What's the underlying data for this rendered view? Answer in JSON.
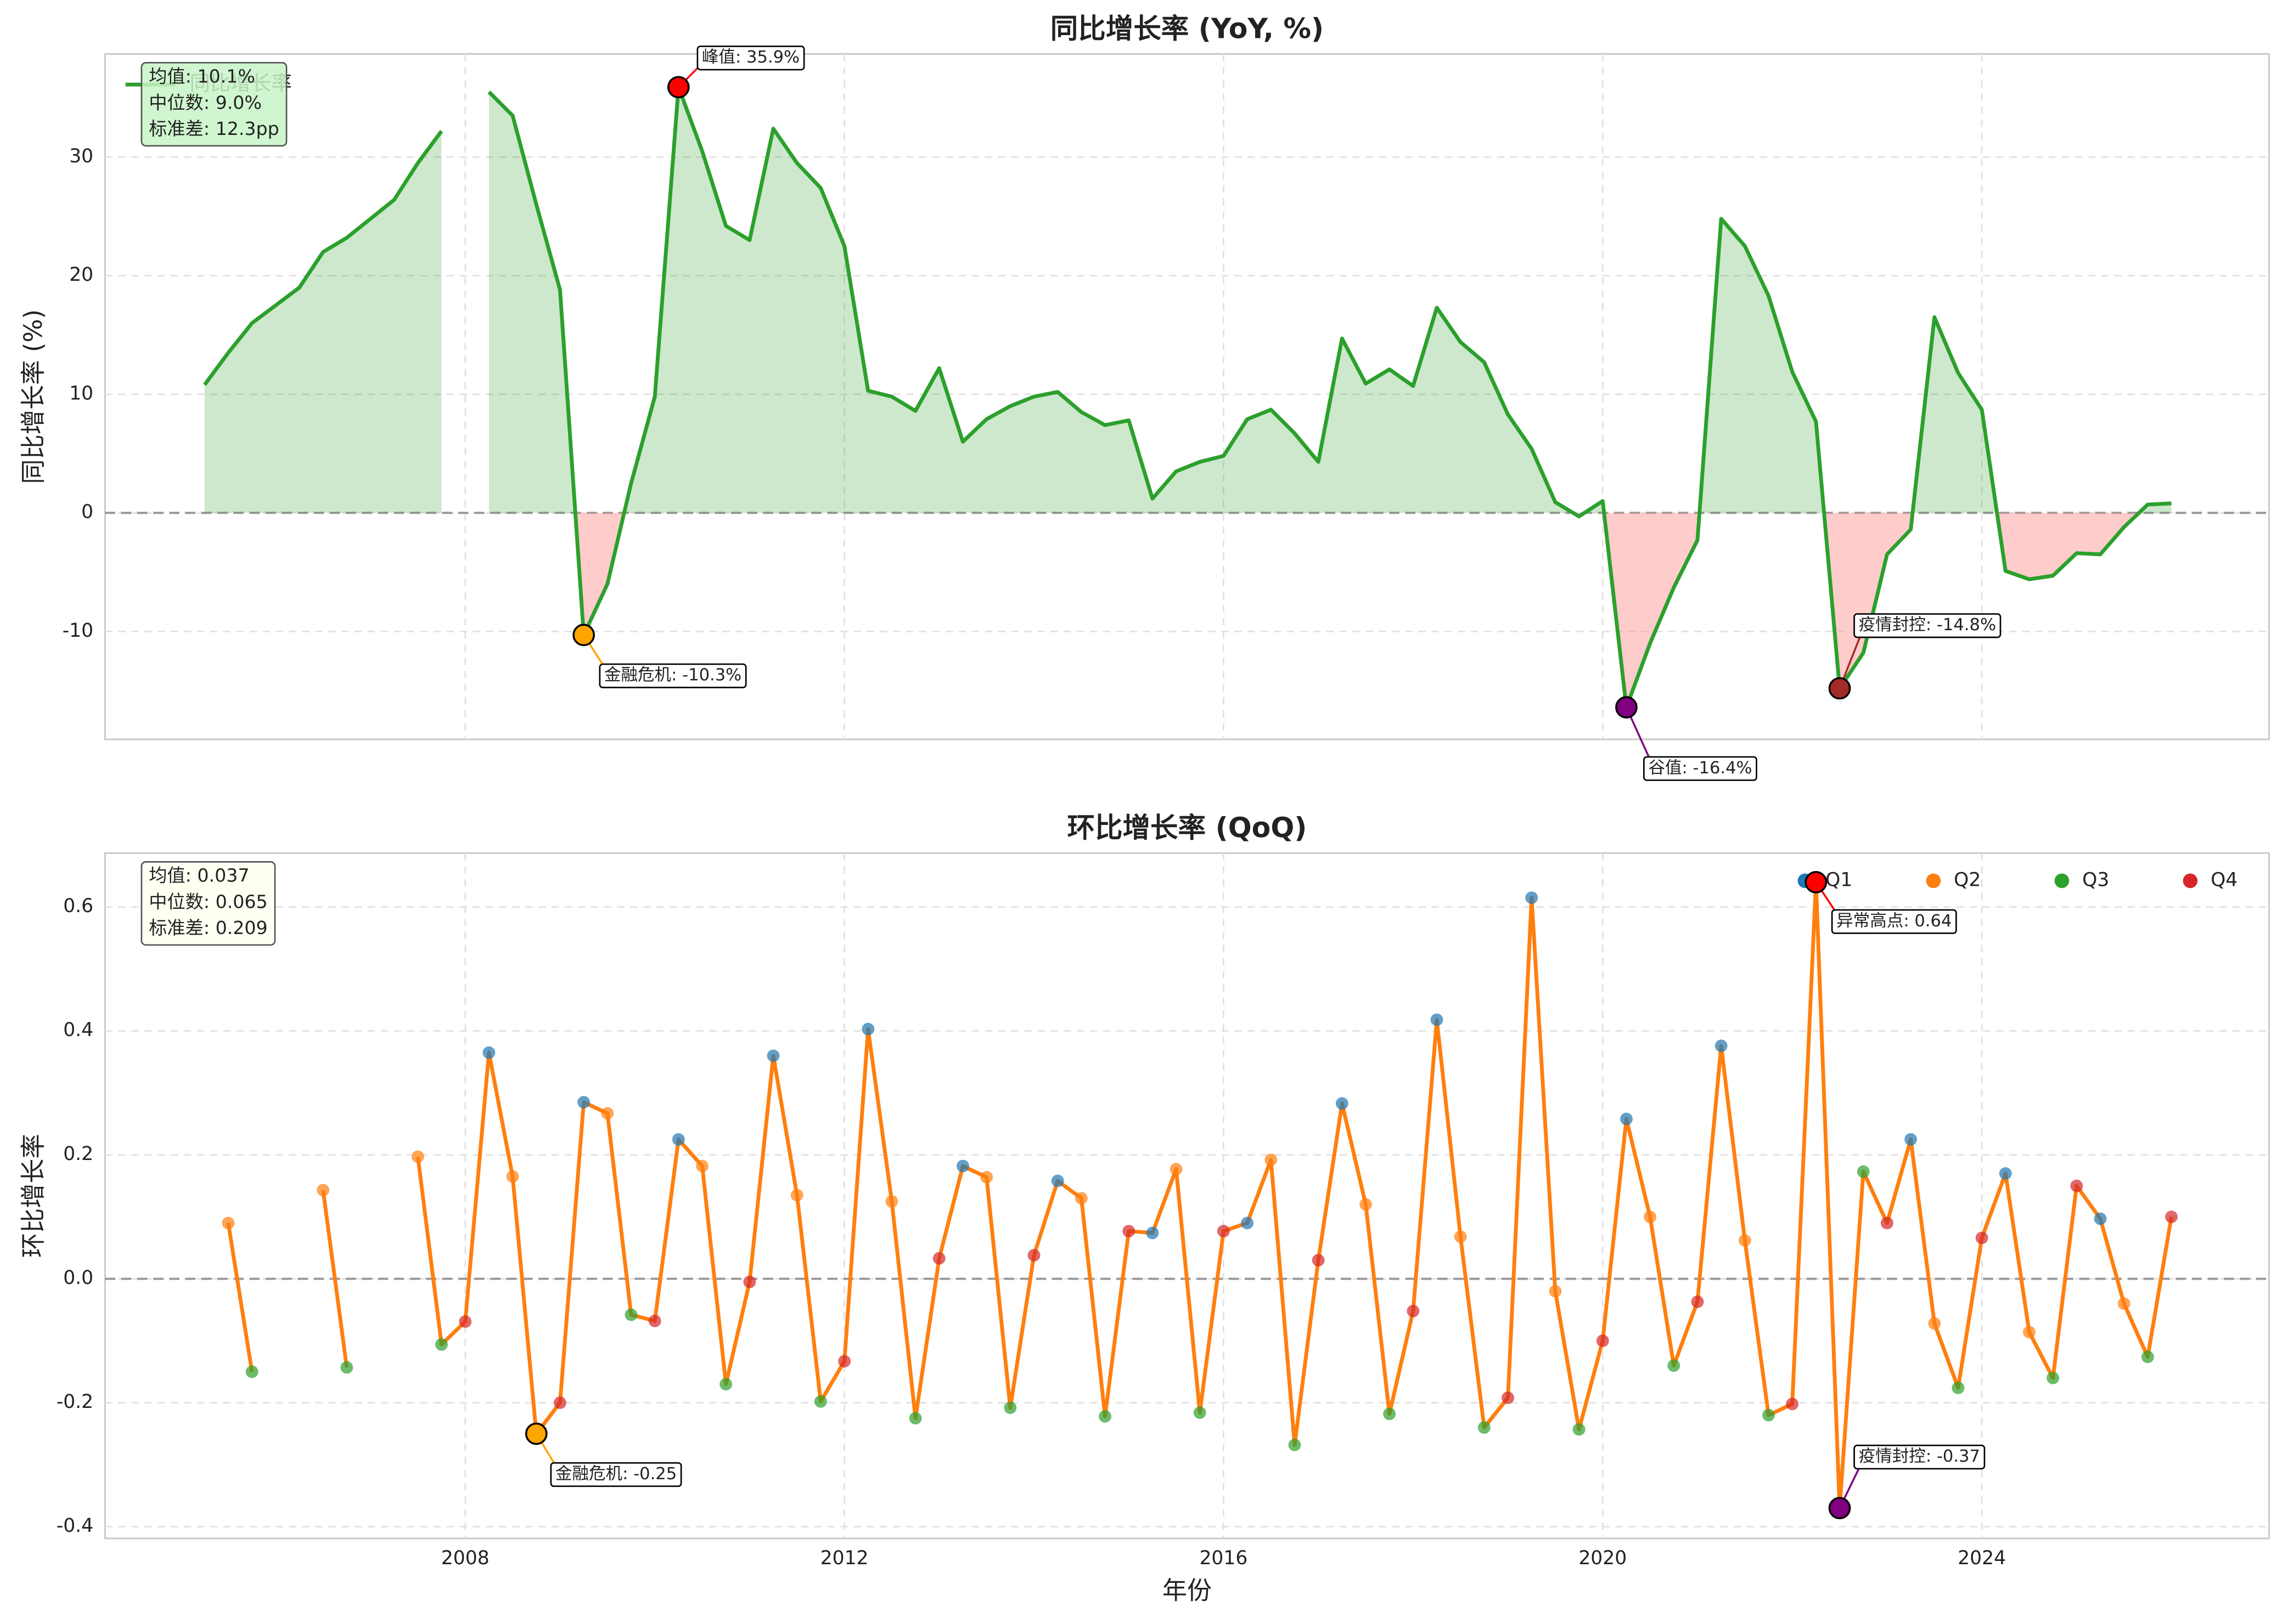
{
  "chart_data": [
    {
      "type": "area",
      "title": "同比增长率 (YoY, %)",
      "y_label": "同比增长率 (%)",
      "show_xtick_labels": false,
      "legend_loc": "upper left",
      "grid": true,
      "xlim": [
        2004.2,
        2027.03
      ],
      "xticks": [
        2008,
        2012,
        2016,
        2020,
        2024
      ],
      "ylim": [
        -19.1,
        38.7
      ],
      "yticks": [
        -10,
        0,
        10,
        20,
        30
      ],
      "positive_color": "#2ca02c",
      "negative_color": "#ff9999",
      "stats": [
        "均值: 10.1%",
        "中位数: 9.0%",
        "标准差: 12.3pp"
      ],
      "stats_color": "#c8f5c8",
      "x": [
        2005.25,
        2005.5,
        2005.75,
        2006,
        2006.25,
        2006.5,
        2006.75,
        2007,
        2007.25,
        2007.5,
        2007.75,
        2008,
        2008.25,
        2008.5,
        2008.75,
        2009,
        2009.25,
        2009.5,
        2009.75,
        2010,
        2010.25,
        2010.5,
        2010.75,
        2011,
        2011.25,
        2011.5,
        2011.75,
        2012,
        2012.25,
        2012.5,
        2012.75,
        2013,
        2013.25,
        2013.5,
        2013.75,
        2014,
        2014.25,
        2014.5,
        2014.75,
        2015,
        2015.25,
        2015.5,
        2015.75,
        2016,
        2016.25,
        2016.5,
        2016.75,
        2017,
        2017.25,
        2017.5,
        2017.75,
        2018,
        2018.25,
        2018.5,
        2018.75,
        2019,
        2019.25,
        2019.5,
        2019.75,
        2020,
        2020.25,
        2020.5,
        2020.75,
        2021,
        2021.25,
        2021.5,
        2021.75,
        2022,
        2022.25,
        2022.5,
        2022.75,
        2023,
        2023.25,
        2023.5,
        2023.75,
        2024,
        2024.25,
        2024.5,
        2024.75,
        2025,
        2025.25,
        2025.5,
        2025.75,
        2026
      ],
      "series": [
        {
          "name": "同比增长率",
          "color": "#2ca02c",
          "values": [
            10.8,
            13.5,
            16,
            17.5,
            19,
            22,
            23.2,
            24.8,
            26.4,
            29.5,
            32.2,
            null,
            35.5,
            33.5,
            26,
            18.8,
            -10.3,
            -6,
            2.5,
            9.8,
            35.9,
            30.5,
            24.2,
            23,
            32.4,
            29.5,
            27.4,
            22.5,
            10.3,
            9.8,
            8.6,
            12.2,
            6,
            7.9,
            9,
            9.8,
            10.2,
            8.5,
            7.4,
            7.8,
            1.2,
            3.5,
            4.3,
            4.8,
            7.9,
            8.7,
            6.7,
            4.3,
            14.7,
            10.9,
            12.1,
            10.7,
            17.3,
            14.4,
            12.7,
            8.3,
            5.4,
            0.9,
            -0.3,
            1,
            -16.4,
            -11,
            -6.3,
            -2.3,
            24.8,
            22.5,
            18.3,
            11.9,
            7.7,
            -14.8,
            -11.8,
            -3.5,
            -1.4,
            16.5,
            11.8,
            8.7,
            -4.9,
            -5.6,
            -5.3,
            -3.4,
            -3.5,
            -1.2,
            0.7,
            0.8
          ]
        }
      ],
      "annotations": [
        {
          "label": "峰值: 35.9%",
          "x": 2010.25,
          "y": 35.9,
          "color": "#ff0000"
        },
        {
          "label": "金融危机: -10.3%",
          "x": 2009.25,
          "y": -10.3,
          "color": "#ffa500"
        },
        {
          "label": "谷值: -16.4%",
          "x": 2020.25,
          "y": -16.4,
          "color": "#800080"
        },
        {
          "label": "疫情封控: -14.8%",
          "x": 2022.5,
          "y": -14.8,
          "color": "#a52a2a"
        }
      ]
    },
    {
      "type": "line",
      "title": "环比增长率 (QoQ)",
      "y_label": "环比增长率",
      "x_label": "年份",
      "legend_loc": "upper right",
      "grid": true,
      "xlim": [
        2004.2,
        2027.03
      ],
      "xticks": [
        2008,
        2012,
        2016,
        2020,
        2024
      ],
      "ylim": [
        -0.419,
        0.687
      ],
      "yticks": [
        -0.4,
        -0.2,
        {
          "value": 0,
          "label": "0.0"
        },
        0.2,
        0.4,
        0.6
      ],
      "stats": [
        "均值: 0.037",
        "中位数: 0.065",
        "标准差: 0.209"
      ],
      "stats_color": "#fffff0",
      "legend": [
        {
          "name": "Q1",
          "color": "#1f77b4"
        },
        {
          "name": "Q2",
          "color": "#ff7f0e"
        },
        {
          "name": "Q3",
          "color": "#2ca02c"
        },
        {
          "name": "Q4",
          "color": "#d62728"
        }
      ],
      "x": [
        2005.25,
        2005.5,
        2005.75,
        2006,
        2006.25,
        2006.5,
        2006.75,
        2007,
        2007.25,
        2007.5,
        2007.75,
        2008,
        2008.25,
        2008.5,
        2008.75,
        2009,
        2009.25,
        2009.5,
        2009.75,
        2010,
        2010.25,
        2010.5,
        2010.75,
        2011,
        2011.25,
        2011.5,
        2011.75,
        2012,
        2012.25,
        2012.5,
        2012.75,
        2013,
        2013.25,
        2013.5,
        2013.75,
        2014,
        2014.25,
        2014.5,
        2014.75,
        2015,
        2015.25,
        2015.5,
        2015.75,
        2016,
        2016.25,
        2016.5,
        2016.75,
        2017,
        2017.25,
        2017.5,
        2017.75,
        2018,
        2018.25,
        2018.5,
        2018.75,
        2019,
        2019.25,
        2019.5,
        2019.75,
        2020,
        2020.25,
        2020.5,
        2020.75,
        2021,
        2021.25,
        2021.5,
        2021.75,
        2022,
        2022.25,
        2022.5,
        2022.75,
        2023,
        2023.25,
        2023.5,
        2023.75,
        2024,
        2024.25,
        2024.5,
        2024.75,
        2025,
        2025.25,
        2025.5,
        2025.75,
        2026
      ],
      "series": [
        {
          "name": "环比增长率",
          "color": "#ff7f0e",
          "values": [
            null,
            0.09,
            -0.15,
            null,
            null,
            0.143,
            -0.143,
            null,
            null,
            0.197,
            -0.106,
            -0.069,
            0.365,
            0.165,
            -0.25,
            -0.2,
            0.285,
            0.267,
            -0.058,
            -0.068,
            0.225,
            0.182,
            -0.17,
            -0.005,
            0.36,
            0.135,
            -0.198,
            -0.133,
            0.403,
            0.125,
            -0.225,
            0.033,
            0.182,
            0.164,
            -0.208,
            0.038,
            0.158,
            0.13,
            -0.222,
            0.077,
            0.074,
            0.177,
            -0.216,
            0.077,
            0.09,
            0.192,
            -0.268,
            0.03,
            0.283,
            0.12,
            -0.218,
            -0.052,
            0.418,
            0.068,
            -0.24,
            -0.192,
            0.615,
            -0.02,
            -0.243,
            -0.1,
            0.258,
            0.1,
            -0.14,
            -0.037,
            0.376,
            0.062,
            -0.22,
            -0.202,
            0.64,
            -0.37,
            0.173,
            0.09,
            0.225,
            -0.072,
            -0.176,
            0.066,
            0.17,
            -0.086,
            -0.16,
            0.15,
            0.097,
            -0.04,
            -0.126,
            0.1
          ]
        }
      ],
      "annotations": [
        {
          "label": "金融危机: -0.25",
          "x": 2008.75,
          "y": -0.25,
          "color": "#ffa500"
        },
        {
          "label": "异常高点: 0.64",
          "x": 2022.25,
          "y": 0.64,
          "color": "#ff0000"
        },
        {
          "label": "疫情封控: -0.37",
          "x": 2022.5,
          "y": -0.37,
          "color": "#800080"
        }
      ]
    }
  ]
}
